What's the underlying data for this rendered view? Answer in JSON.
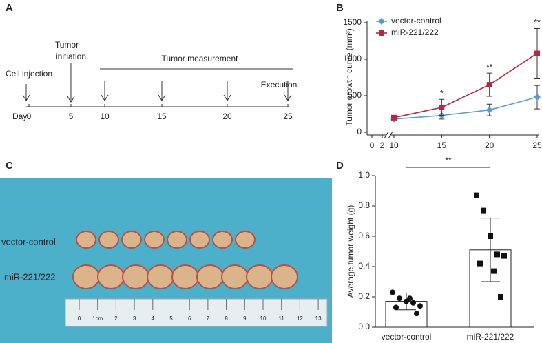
{
  "timeline": {
    "panel": "A",
    "injection": "Cell injection",
    "initiation": [
      "Tumor",
      "initiation"
    ],
    "measurement": "Tumor measurement",
    "execution": "Execution",
    "day_label": "Day",
    "days": [
      0,
      5,
      10,
      15,
      20,
      25
    ]
  },
  "photo": {
    "panel": "C",
    "rows": [
      "vector-control",
      "miR-221/222"
    ],
    "ruler": [
      "0",
      "1cm",
      "2",
      "3",
      "4",
      "5",
      "6",
      "7",
      "8",
      "9",
      "10",
      "11",
      "12",
      "13"
    ]
  },
  "chart_data": [
    {
      "type": "line",
      "panel": "B",
      "ylabel": "Tumor growth curve (mm³)",
      "x": [
        10,
        15,
        20,
        25
      ],
      "xlim": [
        0,
        25
      ],
      "xticks": [
        0,
        2,
        10,
        15,
        20,
        25
      ],
      "ylim": [
        0,
        1500
      ],
      "yticks": [
        0,
        500,
        1000,
        1500
      ],
      "legend": "upper left",
      "series": [
        {
          "name": "vector-control",
          "color": "#5b9bd5",
          "marker": "diamond",
          "values": [
            180,
            230,
            305,
            480
          ],
          "errors": [
            20,
            50,
            80,
            160
          ]
        },
        {
          "name": "miR-221/222",
          "color": "#b22a3e",
          "marker": "square",
          "values": [
            200,
            340,
            650,
            1080
          ],
          "errors": [
            20,
            110,
            160,
            340
          ]
        }
      ],
      "significance": [
        null,
        "*",
        "**",
        "**"
      ]
    },
    {
      "type": "bar",
      "panel": "D",
      "ylabel": "Average tumor weight (g)",
      "categories": [
        "vector-control",
        "miR-221/222"
      ],
      "values": [
        0.17,
        0.51
      ],
      "errors": [
        0.055,
        0.21
      ],
      "color": "#ffffff",
      "points": [
        [
          0.23,
          0.19,
          0.17,
          0.16,
          0.14,
          0.13,
          0.19,
          0.09
        ],
        [
          0.87,
          0.77,
          0.6,
          0.48,
          0.47,
          0.42,
          0.37,
          0.2
        ]
      ],
      "ylim": [
        0,
        1
      ],
      "yticks": [
        {
          "value": 0,
          "label": "0.0"
        },
        0.2,
        0.4,
        0.6,
        0.8,
        {
          "value": 1,
          "label": "1.0"
        }
      ],
      "significance": "**"
    }
  ]
}
